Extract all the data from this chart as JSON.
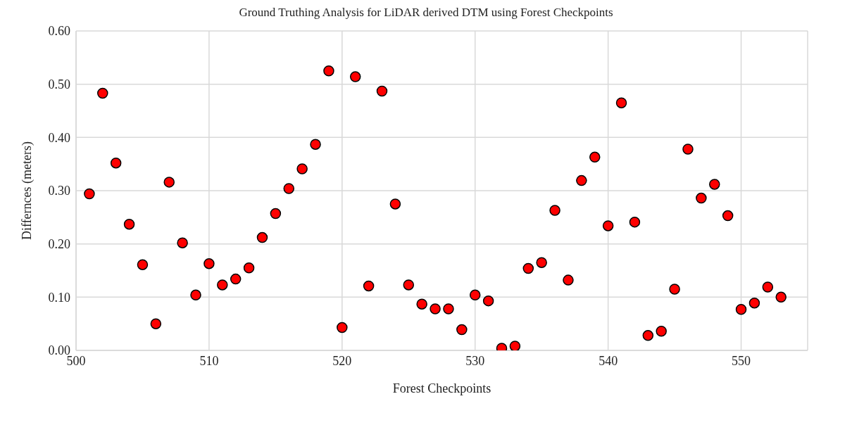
{
  "chart_data": {
    "type": "scatter",
    "title": "Ground Truthing Analysis for LiDAR derived DTM using Forest Checkpoints",
    "xlabel": "Forest Checkpoints",
    "ylabel": "Differnces (meters)",
    "x": [
      501,
      502,
      503,
      504,
      505,
      506,
      507,
      508,
      509,
      510,
      511,
      512,
      513,
      514,
      515,
      516,
      517,
      518,
      519,
      520,
      521,
      522,
      523,
      524,
      525,
      526,
      527,
      528,
      529,
      530,
      531,
      532,
      533,
      534,
      535,
      536,
      537,
      538,
      539,
      540,
      541,
      542,
      543,
      544,
      545,
      546,
      547,
      548,
      549,
      550,
      551,
      552,
      553
    ],
    "values": [
      0.294,
      0.483,
      0.352,
      0.237,
      0.161,
      0.05,
      0.316,
      0.202,
      0.104,
      0.163,
      0.123,
      0.134,
      0.155,
      0.212,
      0.257,
      0.304,
      0.341,
      0.387,
      0.525,
      0.043,
      0.514,
      0.121,
      0.487,
      0.275,
      0.123,
      0.087,
      0.078,
      0.078,
      0.039,
      0.104,
      0.093,
      0.004,
      0.008,
      0.154,
      0.165,
      0.263,
      0.132,
      0.319,
      0.363,
      0.234,
      0.465,
      0.241,
      0.028,
      0.036,
      0.115,
      0.378,
      0.286,
      0.312,
      0.253,
      0.077,
      0.089,
      0.119,
      0.1
    ],
    "color": "#ff0000",
    "marker": "circle",
    "grid": true,
    "legend": false,
    "xlim": [
      500,
      555
    ],
    "xticks": [
      500,
      510,
      520,
      530,
      540,
      550
    ],
    "ylim": [
      0,
      0.6
    ],
    "yticks": [
      {
        "value": 0,
        "label": "0.00"
      },
      {
        "value": 0.1,
        "label": "0.10"
      },
      {
        "value": 0.2,
        "label": "0.20"
      },
      {
        "value": 0.3,
        "label": "0.30"
      },
      {
        "value": 0.4,
        "label": "0.40"
      },
      {
        "value": 0.5,
        "label": "0.50"
      },
      {
        "value": 0.6,
        "label": "0.60"
      }
    ]
  }
}
